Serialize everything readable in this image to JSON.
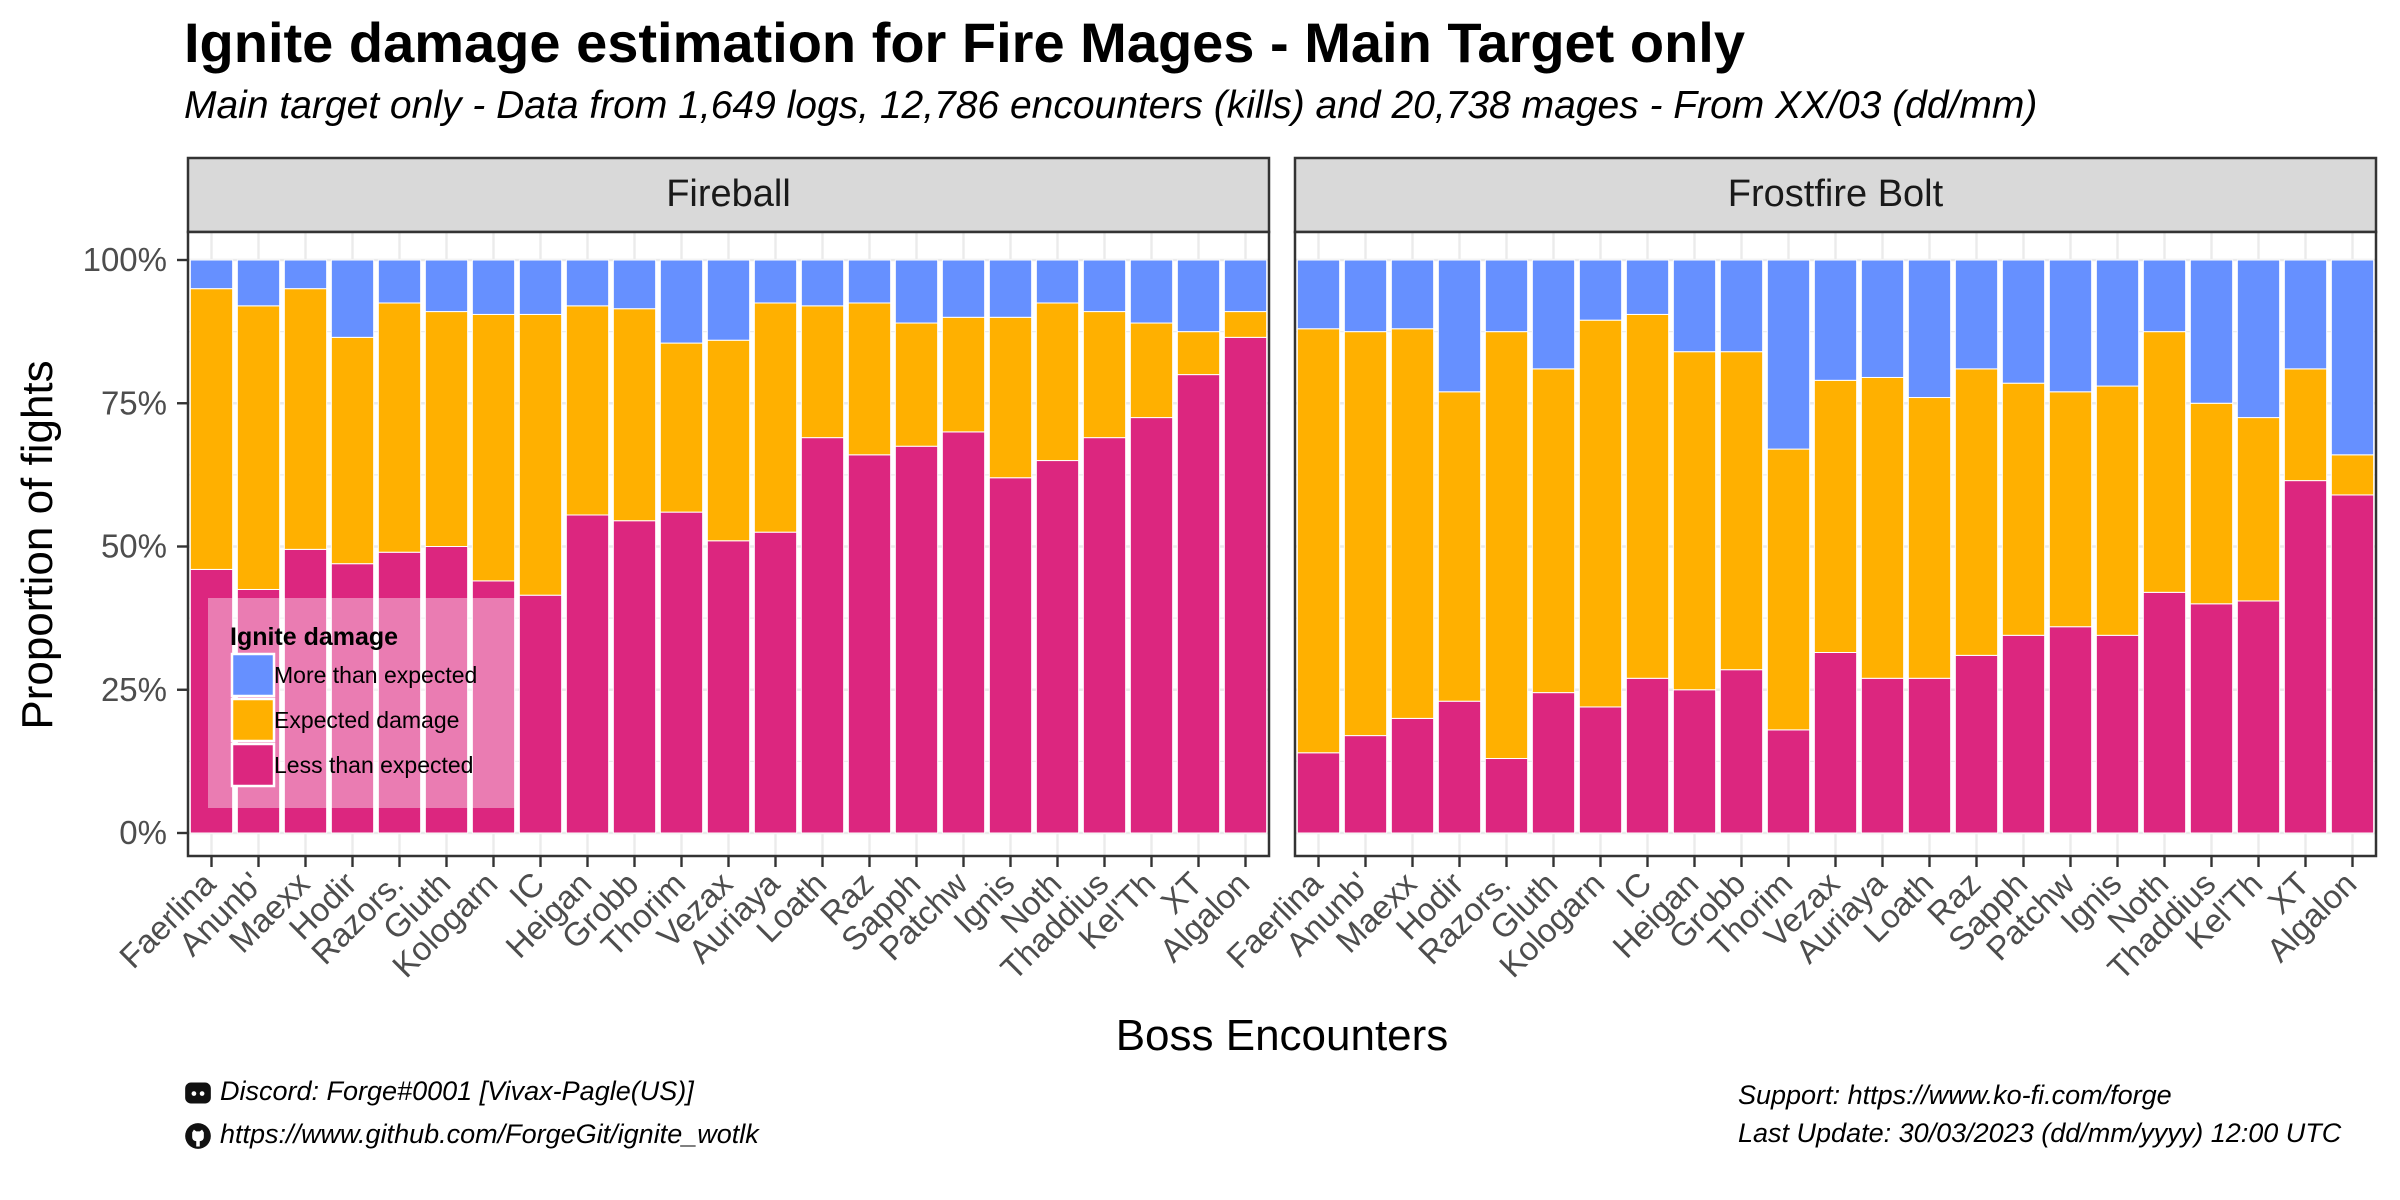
{
  "title": "Ignite damage estimation for Fire Mages - Main Target only",
  "subtitle": "Main target only - Data from 1,649 logs, 12,786 encounters (kills) and 20,738 mages - From XX/03 (dd/mm)",
  "footer": {
    "discord": "Discord: Forge#0001 [Vivax-Pagle(US)]",
    "github": "https://www.github.com/ForgeGit/ignite_wotlk",
    "support": "Support: https://www.ko-fi.com/forge",
    "last_update": "Last Update: 30/03/2023 (dd/mm/yyyy) 12:00 UTC",
    "discord_icon": "discord-icon",
    "github_icon": "github-icon"
  },
  "colors": {
    "more": "#6690FF",
    "expected": "#FFB000",
    "less": "#DC267F",
    "strip": "#D9D9D9",
    "grid": "#EBEBEB"
  },
  "chart_data": {
    "type": "bar",
    "stacked": true,
    "xlabel": "Boss Encounters",
    "ylabel": "Proportion of fights",
    "ylim": [
      0,
      1
    ],
    "yticks": [
      "0%",
      "25%",
      "50%",
      "75%",
      "100%"
    ],
    "grid": true,
    "categories": [
      "Faerlina",
      "Anunb'",
      "Maexx",
      "Hodir",
      "Razors.",
      "Gluth",
      "Kologarn",
      "IC",
      "Heigan",
      "Grobb",
      "Thorim",
      "Vezax",
      "Auriaya",
      "Loath",
      "Raz",
      "Sapph",
      "Patchw",
      "Ignis",
      "Noth",
      "Thaddius",
      "Kel'Th",
      "XT",
      "Algalon"
    ],
    "legend": {
      "title": "Ignite damage",
      "position": "bottom-left inside first panel",
      "entries": [
        "More than expected",
        "Expected damage",
        "Less than expected"
      ]
    },
    "panels": [
      {
        "name": "Fireball",
        "series": [
          {
            "name": "Less than expected",
            "values": [
              0.46,
              0.425,
              0.495,
              0.47,
              0.49,
              0.5,
              0.44,
              0.415,
              0.555,
              0.545,
              0.56,
              0.51,
              0.525,
              0.69,
              0.66,
              0.675,
              0.7,
              0.62,
              0.65,
              0.69,
              0.725,
              0.8,
              0.865
            ]
          },
          {
            "name": "Expected damage",
            "values": [
              0.49,
              0.495,
              0.455,
              0.395,
              0.435,
              0.41,
              0.465,
              0.49,
              0.365,
              0.37,
              0.295,
              0.35,
              0.4,
              0.23,
              0.265,
              0.215,
              0.2,
              0.28,
              0.275,
              0.22,
              0.165,
              0.075,
              0.045
            ]
          },
          {
            "name": "More than expected",
            "values": [
              0.05,
              0.08,
              0.05,
              0.135,
              0.075,
              0.09,
              0.095,
              0.095,
              0.08,
              0.085,
              0.145,
              0.14,
              0.075,
              0.08,
              0.075,
              0.11,
              0.1,
              0.1,
              0.075,
              0.09,
              0.11,
              0.125,
              0.09
            ]
          }
        ]
      },
      {
        "name": "Frostfire Bolt",
        "series": [
          {
            "name": "Less than expected",
            "values": [
              0.14,
              0.17,
              0.2,
              0.23,
              0.13,
              0.245,
              0.22,
              0.27,
              0.25,
              0.285,
              0.18,
              0.315,
              0.27,
              0.27,
              0.31,
              0.345,
              0.36,
              0.345,
              0.42,
              0.4,
              0.405,
              0.615,
              0.59
            ]
          },
          {
            "name": "Expected damage",
            "values": [
              0.74,
              0.705,
              0.68,
              0.54,
              0.745,
              0.565,
              0.675,
              0.635,
              0.59,
              0.555,
              0.49,
              0.475,
              0.525,
              0.49,
              0.5,
              0.44,
              0.41,
              0.435,
              0.455,
              0.35,
              0.32,
              0.195,
              0.07
            ]
          },
          {
            "name": "More than expected",
            "values": [
              0.12,
              0.125,
              0.12,
              0.23,
              0.125,
              0.19,
              0.105,
              0.095,
              0.16,
              0.16,
              0.33,
              0.21,
              0.205,
              0.24,
              0.19,
              0.215,
              0.23,
              0.22,
              0.125,
              0.25,
              0.275,
              0.19,
              0.34
            ]
          }
        ]
      }
    ]
  }
}
